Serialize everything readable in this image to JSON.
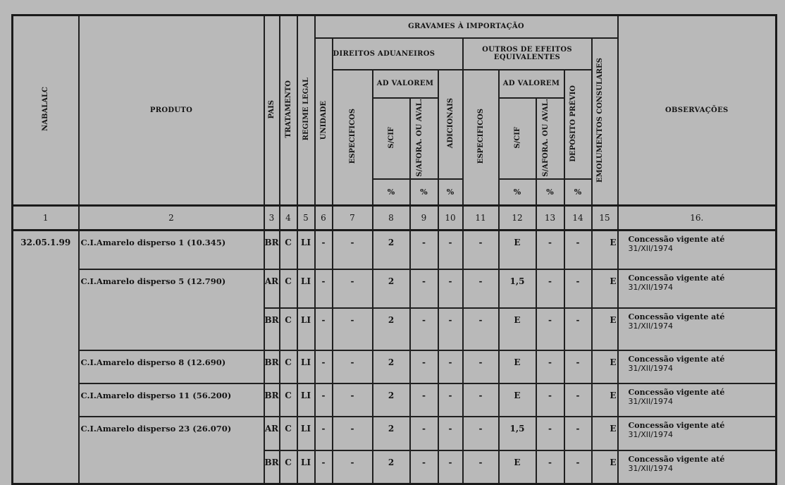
{
  "header": {
    "nabalalc": "NABALALC",
    "produto": "PRODUTO",
    "pais": "PAIS",
    "tratamento": "TRATAMENTO",
    "regime_legal": "REGIME LEGAL",
    "gravames": "GRAVAMES À IMPORTAÇÃO",
    "unidade": "UNIDADE",
    "direitos_aduaneiros": "DIREITOS ADUANEIROS",
    "outros": "OUTROS DE EFEITOS EQUIVALENTES",
    "emolumentos": "EMOLUMENTOS CONSULARES",
    "observacoes": "OBSERVAÇÕES",
    "especificos_1": "ESPECIFICOS",
    "ad_valorem_1": "AD VALOREM",
    "adicionais": "ADICIONAIS",
    "especificos_2": "ESPECIFICOS",
    "ad_valorem_2": "AD VALOREM",
    "deposito_previo": "DEPÓSITO PRÉVIO",
    "s_cif_1": "S/CIF",
    "s_afora_1": "S/AFORA. OU AVAL.",
    "s_cif_2": "S/CIF",
    "s_afora_2": "S/AFORA. OU AVAL.",
    "pct": "%"
  },
  "column_numbers": [
    "1",
    "2",
    "3",
    "4",
    "5",
    "6",
    "7",
    "8",
    "9",
    "10",
    "11",
    "12",
    "13",
    "14",
    "15",
    "16."
  ],
  "nabalalc_code": "32.05.1.99",
  "rows": [
    {
      "produto": "C.I.Amarelo disperso 1 (10.345)",
      "values": [
        "BR",
        "C",
        "LI",
        "-",
        "-",
        "2",
        "-",
        "-",
        "-",
        "E",
        "-",
        "-",
        "E"
      ],
      "obs": [
        "Concessão vigente até",
        "31/XII/1974"
      ]
    },
    {
      "produto": "C.I.Amarelo disperso 5 (12.790)",
      "produto_rows": 2,
      "values": [
        "AR",
        "C",
        "LI",
        "-",
        "-",
        "2",
        "-",
        "-",
        "-",
        "1,5",
        "-",
        "-",
        "E"
      ],
      "obs": [
        "Concessão vigente até",
        "31/XII/1974"
      ]
    },
    {
      "values": [
        "BR",
        "C",
        "LI",
        "-",
        "-",
        "2",
        "-",
        "-",
        "-",
        "E",
        "-",
        "-",
        "E"
      ],
      "obs": [
        "Concessão vigente até",
        "31/XII/1974"
      ]
    },
    {
      "produto": "C.I.Amarelo disperso 8 (12.690)",
      "values": [
        "BR",
        "C",
        "LI",
        "-",
        "-",
        "2",
        "-",
        "-",
        "-",
        "E",
        "-",
        "-",
        "E"
      ],
      "obs": [
        "Concessão vigente até",
        "31/XII/1974"
      ]
    },
    {
      "produto": "C.I.Amarelo disperso 11 (56.200)",
      "values": [
        "BR",
        "C",
        "LI",
        "-",
        "-",
        "2",
        "-",
        "-",
        "-",
        "E",
        "-",
        "-",
        "E"
      ],
      "obs": [
        "Concessão vigente até",
        "31/XII/1974"
      ]
    },
    {
      "produto": "C.I.Amarelo disperso 23 (26.070)",
      "produto_rows": 2,
      "values": [
        "AR",
        "C",
        "LI",
        "-",
        "-",
        "2",
        "-",
        "-",
        "-",
        "1,5",
        "-",
        "-",
        "E"
      ],
      "obs": [
        "Concessão vigente até",
        "31/XII/1974"
      ]
    },
    {
      "values": [
        "BR",
        "C",
        "LI",
        "-",
        "-",
        "2",
        "-",
        "-",
        "-",
        "E",
        "-",
        "-",
        "E"
      ],
      "obs": [
        "Concessão vigente até",
        "31/XII/1974"
      ]
    }
  ]
}
